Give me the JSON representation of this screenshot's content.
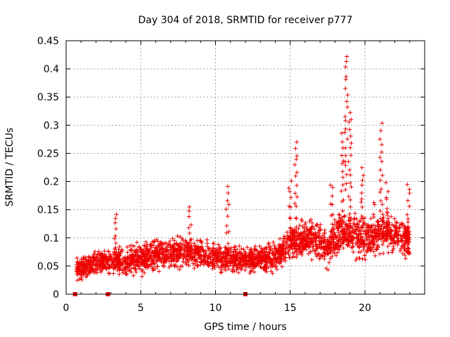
{
  "chart_data": {
    "type": "scatter",
    "title": "Day 304 of 2018, SRMTID for receiver p777",
    "xlabel": "GPS time / hours",
    "ylabel": "SRMTID / TECUs",
    "xlim": [
      0,
      24
    ],
    "ylim": [
      0,
      0.45
    ],
    "grid": true,
    "x_ticks": [
      0,
      5,
      10,
      15,
      20
    ],
    "x_tick_labels": [
      "0",
      "5",
      "10",
      "15",
      "20"
    ],
    "y_ticks": [
      0,
      0.05,
      0.1,
      0.15,
      0.2,
      0.25,
      0.3,
      0.35,
      0.4,
      0.45
    ],
    "y_tick_labels": [
      "0",
      "0.05",
      "0.1",
      "0.15",
      "0.2",
      "0.25",
      "0.3",
      "0.35",
      "0.4",
      "0.45"
    ],
    "series": [
      {
        "name": "SRMTID",
        "marker": "+",
        "color": "#ee0000",
        "time_range_hours": [
          0.7,
          23.0
        ],
        "profile": [
          {
            "hour": 0.7,
            "median": 0.045,
            "spread": 0.025
          },
          {
            "hour": 2.0,
            "median": 0.055,
            "spread": 0.03
          },
          {
            "hour": 5.0,
            "median": 0.065,
            "spread": 0.035
          },
          {
            "hour": 8.0,
            "median": 0.075,
            "spread": 0.04
          },
          {
            "hour": 10.0,
            "median": 0.065,
            "spread": 0.035
          },
          {
            "hour": 12.0,
            "median": 0.06,
            "spread": 0.03
          },
          {
            "hour": 14.0,
            "median": 0.065,
            "spread": 0.03
          },
          {
            "hour": 15.0,
            "median": 0.09,
            "spread": 0.04
          },
          {
            "hour": 16.5,
            "median": 0.1,
            "spread": 0.045
          },
          {
            "hour": 17.5,
            "median": 0.08,
            "spread": 0.045
          },
          {
            "hour": 18.5,
            "median": 0.11,
            "spread": 0.05
          },
          {
            "hour": 20.0,
            "median": 0.1,
            "spread": 0.05
          },
          {
            "hour": 21.0,
            "median": 0.11,
            "spread": 0.045
          },
          {
            "hour": 23.0,
            "median": 0.1,
            "spread": 0.04
          }
        ],
        "spikes": [
          {
            "hour": 3.3,
            "peak": 0.15
          },
          {
            "hour": 8.3,
            "peak": 0.158
          },
          {
            "hour": 10.8,
            "peak": 0.195
          },
          {
            "hour": 15.4,
            "peak": 0.275
          },
          {
            "hour": 15.0,
            "peak": 0.207
          },
          {
            "hour": 17.8,
            "peak": 0.2
          },
          {
            "hour": 18.5,
            "peak": 0.29
          },
          {
            "hour": 18.75,
            "peak": 0.43
          },
          {
            "hour": 19.0,
            "peak": 0.33
          },
          {
            "hour": 19.8,
            "peak": 0.23
          },
          {
            "hour": 20.6,
            "peak": 0.17
          },
          {
            "hour": 21.1,
            "peak": 0.305
          },
          {
            "hour": 21.5,
            "peak": 0.2
          },
          {
            "hour": 22.9,
            "peak": 0.2
          }
        ]
      }
    ],
    "data_gap_flags_hours": [
      0.6,
      2.8,
      12.0
    ]
  }
}
